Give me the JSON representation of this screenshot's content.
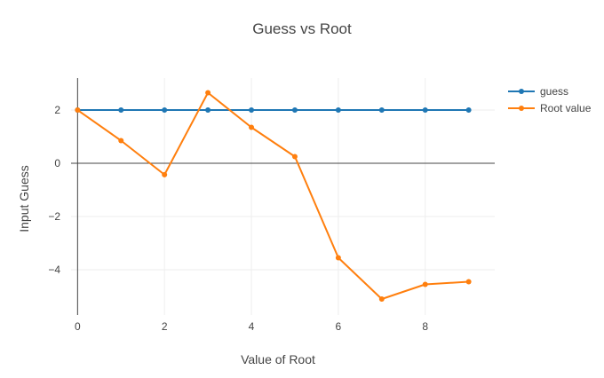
{
  "chart_data": {
    "type": "line",
    "title": "Guess vs Root",
    "xlabel": "Value of Root",
    "ylabel": "Input Guess",
    "xlim": [
      -0.15,
      9.6
    ],
    "ylim": [
      -5.7,
      3.2
    ],
    "x_ticks": [
      0,
      2,
      4,
      6,
      8
    ],
    "x_tick_labels": [
      "0",
      "2",
      "4",
      "6",
      "8"
    ],
    "y_ticks": [
      -4,
      -2,
      0,
      2
    ],
    "y_tick_labels": [
      "−4",
      "−2",
      "0",
      "2"
    ],
    "grid": true,
    "legend_position": "top-right",
    "x": [
      0,
      1,
      2,
      3,
      4,
      5,
      6,
      7,
      8,
      9
    ],
    "series": [
      {
        "name": "guess",
        "color": "#1f77b4",
        "values": [
          2,
          2,
          2,
          2,
          2,
          2,
          2,
          2,
          2,
          2
        ]
      },
      {
        "name": "Root value",
        "color": "#ff7f0e",
        "values": [
          2,
          0.85,
          -0.43,
          2.65,
          1.35,
          0.25,
          -3.55,
          -5.1,
          -4.55,
          -4.45
        ]
      }
    ]
  }
}
